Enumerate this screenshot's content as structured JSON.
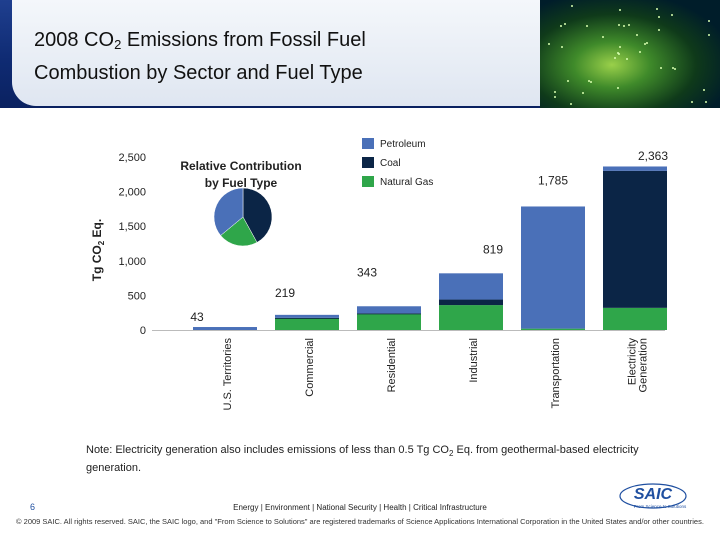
{
  "slide": {
    "title_line1_pre": "2008 CO",
    "title_sub": "2",
    "title_line1_post": " Emissions from Fossil Fuel",
    "title_line2": "Combustion by Sector and Fuel Type",
    "page_number": "6",
    "note_pre": "Note: Electricity generation also includes emissions of less than 0.5 Tg CO",
    "note_sub": "2",
    "note_post": " Eq. from geothermal-based electricity generation.",
    "footer_line1": "Energy | Environment | National Security | Health | Critical Infrastructure",
    "footer_line2": "© 2009 SAIC. All rights reserved. SAIC, the SAIC logo, and \"From Science to Solutions\" are registered trademarks of Science Applications International Corporation in the United States and/or other countries.",
    "logo_text": "SAIC",
    "logo_tagline": "From Science to Solutions"
  },
  "colors": {
    "petroleum": "#4a70b8",
    "coal": "#0b2546",
    "natural_gas": "#2fa64a"
  },
  "chart_data": {
    "type": "bar",
    "stacked": true,
    "categories": [
      "U.S. Territories",
      "Commercial",
      "Residential",
      "Industrial",
      "Transportation",
      "Electricity Generation"
    ],
    "category_lines": [
      [
        "U.S. Territories"
      ],
      [
        "Commercial"
      ],
      [
        "Residential"
      ],
      [
        "Industrial"
      ],
      [
        "Transportation"
      ],
      [
        "Electricity",
        "Generation"
      ]
    ],
    "series": [
      {
        "name": "Natural Gas",
        "values": [
          0,
          170,
          240,
          360,
          20,
          320
        ]
      },
      {
        "name": "Coal",
        "values": [
          0,
          6,
          1,
          80,
          0,
          1980
        ]
      },
      {
        "name": "Petroleum",
        "values": [
          43,
          43,
          102,
          379,
          1765,
          63
        ]
      }
    ],
    "totals": [
      43,
      219,
      343,
      819,
      1785,
      2363
    ],
    "total_labels": [
      "43",
      "219",
      "343",
      "819",
      "1,785",
      "2,363"
    ],
    "ylabel_pre": "Tg CO",
    "ylabel_sub": "2",
    "ylabel_post": " Eq.",
    "ylim": [
      0,
      2500
    ],
    "yticks": [
      0,
      500,
      1000,
      1500,
      2000,
      2500
    ],
    "ytick_labels": [
      "0",
      "500",
      "1,000",
      "1,500",
      "2,000",
      "2,500"
    ],
    "legend": [
      "Petroleum",
      "Coal",
      "Natural Gas"
    ],
    "legend_position": "top-right",
    "inset_pie": {
      "title_line1": "Relative Contribution",
      "title_line2": "by Fuel Type",
      "slices": [
        {
          "name": "Coal",
          "value": 42
        },
        {
          "name": "Natural Gas",
          "value": 22
        },
        {
          "name": "Petroleum",
          "value": 36
        }
      ]
    }
  }
}
